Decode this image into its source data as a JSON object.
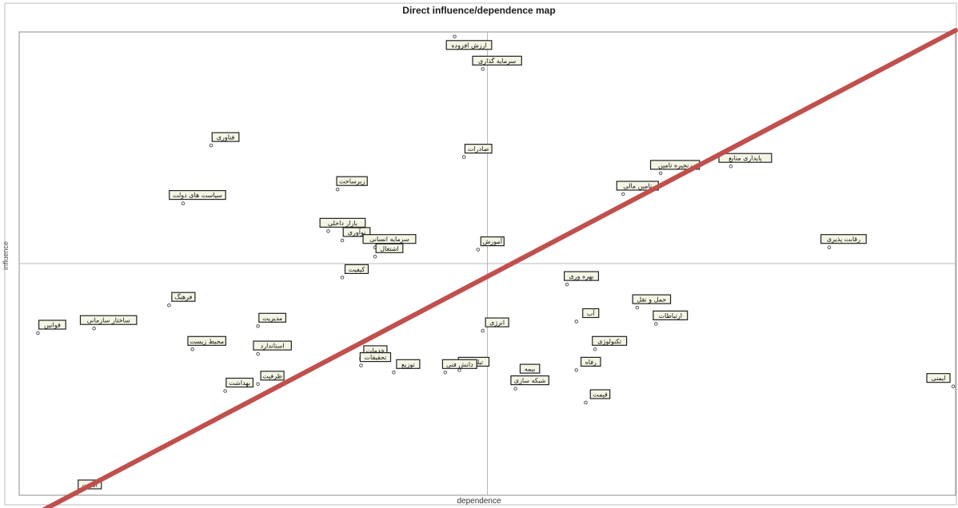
{
  "chart_data": {
    "type": "scatter",
    "title": "Direct influence/dependence map",
    "xlabel": "dependence",
    "ylabel": "influence",
    "xlim": [
      0,
      100
    ],
    "ylim": [
      0,
      100
    ],
    "crosshair": {
      "x": 50,
      "y": 50
    },
    "grid": false,
    "legend": "none",
    "colors": {
      "axis": "#b8b8b8",
      "frame": "#8c8c8c",
      "point": "#555555",
      "label_bg": "#f5f5e6",
      "label_border": "#222222",
      "trend": "#c0504d"
    },
    "points": [
      {
        "label": "ارزش افزوده",
        "x": 46.5,
        "y": 99.0
      },
      {
        "label": "سرمایه گذاری",
        "x": 49.5,
        "y": 92.0
      },
      {
        "label": "فناوری",
        "x": 20.5,
        "y": 75.5
      },
      {
        "label": "صادرات",
        "x": 47.5,
        "y": 73.0
      },
      {
        "label": "زنجیره تامین",
        "x": 68.5,
        "y": 69.5
      },
      {
        "label": "پایداری منابع",
        "x": 76.0,
        "y": 71.0
      },
      {
        "label": "زیرساخت",
        "x": 34.0,
        "y": 66.0
      },
      {
        "label": "سیاست های دولت",
        "x": 17.5,
        "y": 63.0
      },
      {
        "label": "تامین مالی",
        "x": 64.5,
        "y": 65.0
      },
      {
        "label": "بازار داخلی",
        "x": 33.0,
        "y": 57.0
      },
      {
        "label": "نوآوری",
        "x": 34.5,
        "y": 55.0
      },
      {
        "label": "سرمایه انسانی",
        "x": 38.0,
        "y": 53.5
      },
      {
        "label": "اشتغال",
        "x": 38.0,
        "y": 51.5
      },
      {
        "label": "آموزش",
        "x": 49.0,
        "y": 53.0
      },
      {
        "label": "رقابت پذیری",
        "x": 86.5,
        "y": 53.5
      },
      {
        "label": "کیفیت",
        "x": 34.5,
        "y": 47.0
      },
      {
        "label": "بهره وری",
        "x": 58.5,
        "y": 45.5
      },
      {
        "label": "قوانین",
        "x": 2.0,
        "y": 35.0
      },
      {
        "label": "ساختار سازمانی",
        "x": 8.0,
        "y": 36.0
      },
      {
        "label": "فرهنگ",
        "x": 16.0,
        "y": 41.0
      },
      {
        "label": "مدیریت",
        "x": 25.5,
        "y": 36.5
      },
      {
        "label": "انرژی",
        "x": 49.5,
        "y": 35.5
      },
      {
        "label": "آب",
        "x": 59.5,
        "y": 37.5
      },
      {
        "label": "حمل و نقل",
        "x": 66.0,
        "y": 40.5
      },
      {
        "label": "ارتباطات",
        "x": 68.0,
        "y": 37.0
      },
      {
        "label": "تکنولوژی",
        "x": 61.5,
        "y": 31.5
      },
      {
        "label": "محیط زیست",
        "x": 18.5,
        "y": 31.5
      },
      {
        "label": "استاندارد",
        "x": 25.5,
        "y": 30.5
      },
      {
        "label": "خدمات",
        "x": 36.5,
        "y": 29.5
      },
      {
        "label": "تحقیقات",
        "x": 36.5,
        "y": 28.0
      },
      {
        "label": "بیمه",
        "x": 53.0,
        "y": 25.5
      },
      {
        "label": "تبلیغات",
        "x": 47.0,
        "y": 27.0
      },
      {
        "label": "توزیع",
        "x": 40.0,
        "y": 26.5
      },
      {
        "label": "دانش فنی",
        "x": 45.5,
        "y": 26.5
      },
      {
        "label": "شبکه سازی",
        "x": 53.0,
        "y": 23.0
      },
      {
        "label": "رفاه",
        "x": 59.5,
        "y": 27.0
      },
      {
        "label": "ظرفیت",
        "x": 25.5,
        "y": 24.0
      },
      {
        "label": "ایمنی",
        "x": 100.0,
        "y": 23.5
      },
      {
        "label": "بهداشت",
        "x": 22.0,
        "y": 22.5
      },
      {
        "label": "قیمت",
        "x": 60.5,
        "y": 20.0
      },
      {
        "label": "امنیت",
        "x": 6.0,
        "y": -0.5
      }
    ],
    "trend_line": {
      "from": [
        0,
        0
      ],
      "to": [
        100,
        100
      ]
    }
  }
}
